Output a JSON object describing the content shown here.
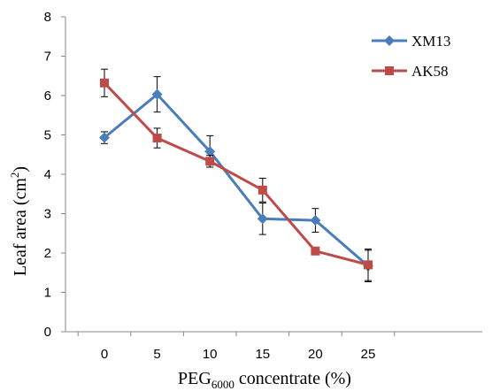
{
  "chart_data": {
    "type": "line",
    "xlabel": {
      "prefix": "PEG",
      "subscript": "6000",
      "suffix": " concentrate (%)"
    },
    "ylabel": {
      "prefix": "Leaf area (cm",
      "superscript": "2",
      "suffix": ")"
    },
    "x": [
      0,
      5,
      10,
      15,
      20,
      25
    ],
    "xticks": [
      "0",
      "5",
      "10",
      "15",
      "20",
      "25"
    ],
    "yticks": [
      "0",
      "1",
      "2",
      "3",
      "4",
      "5",
      "6",
      "7",
      "8"
    ],
    "ylim": [
      0,
      8
    ],
    "grid": false,
    "legend_position": "top-right",
    "series": [
      {
        "name": "XM13",
        "color": "#4a7ebb",
        "marker": "diamond",
        "values": [
          4.93,
          6.03,
          4.58,
          2.87,
          2.83,
          1.67
        ],
        "errors": [
          0.15,
          0.45,
          0.4,
          0.4,
          0.3,
          0.4
        ]
      },
      {
        "name": "AK58",
        "color": "#be4b48",
        "marker": "square",
        "values": [
          6.32,
          4.92,
          4.33,
          3.6,
          2.05,
          1.7
        ],
        "errors": [
          0.35,
          0.25,
          0.15,
          0.3,
          0.08,
          0.4
        ]
      }
    ]
  }
}
